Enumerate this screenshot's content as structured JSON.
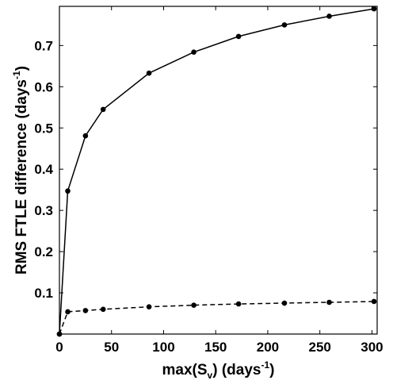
{
  "chart_data": {
    "type": "line",
    "xlabel": {
      "prefix": "max(S",
      "sub": "v",
      "middle": ") (days",
      "sup": "-1",
      "suffix": ")"
    },
    "ylabel": {
      "prefix": "RMS FTLE difference  (days",
      "sup": "-1",
      "suffix": ")"
    },
    "xlim": [
      0,
      305
    ],
    "ylim": [
      0,
      0.795
    ],
    "xticks": [
      0,
      50,
      100,
      150,
      200,
      250,
      300
    ],
    "yticks": [
      0.1,
      0.2,
      0.3,
      0.4,
      0.5,
      0.6,
      0.7
    ],
    "grid": false,
    "series": [
      {
        "style": "solid",
        "color": "#000000",
        "x": [
          0,
          8,
          25,
          42,
          86,
          129,
          172,
          216,
          259,
          302
        ],
        "y": [
          0.0,
          0.347,
          0.481,
          0.545,
          0.633,
          0.684,
          0.722,
          0.75,
          0.771,
          0.789
        ]
      },
      {
        "style": "dashed",
        "color": "#000000",
        "x": [
          0,
          8,
          25,
          42,
          86,
          129,
          172,
          216,
          259,
          302
        ],
        "y": [
          0.0,
          0.054,
          0.057,
          0.06,
          0.066,
          0.07,
          0.073,
          0.075,
          0.077,
          0.079
        ]
      }
    ]
  }
}
